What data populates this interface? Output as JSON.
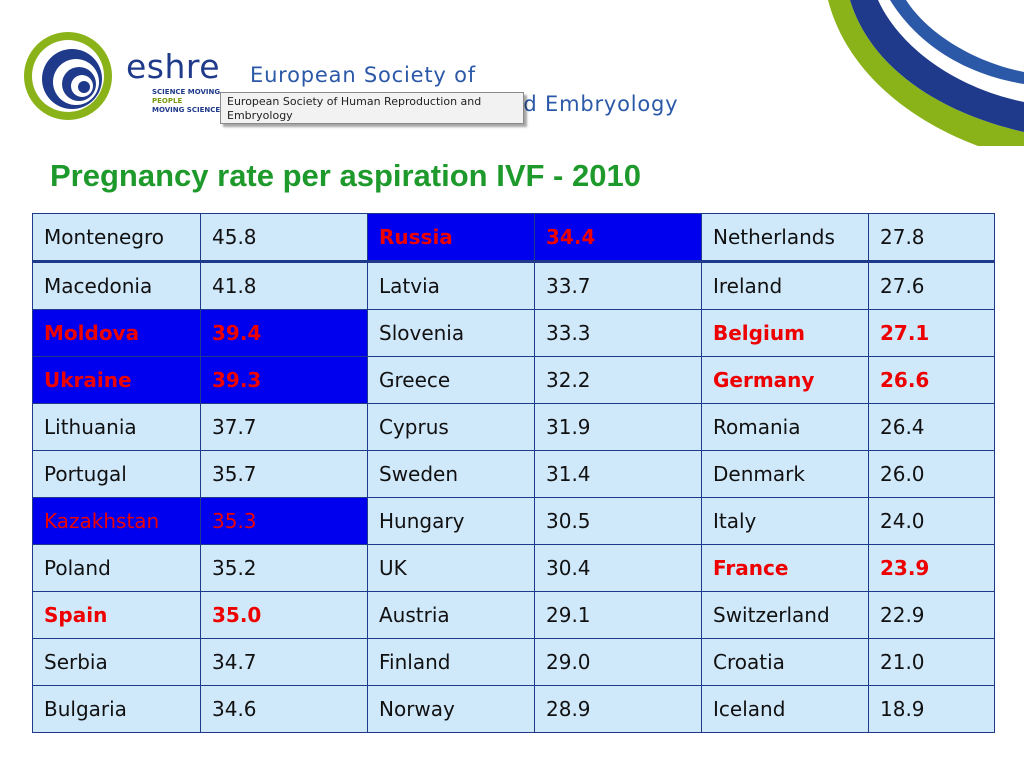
{
  "header": {
    "brand_name": "eshre",
    "tagline": [
      "SCIENCE MOVING",
      "PEOPLE",
      "MOVING SCIENCE"
    ],
    "society_line1": "European Society of",
    "society_line2": "Human Reproduction and Embryology",
    "tooltip_text": "European Society of Human Reproduction and Embryology"
  },
  "title": "Pregnancy rate per aspiration IVF - 2010",
  "colors": {
    "title": "#1e9a2c",
    "cell_background": "#cfe8fa",
    "highlight_cell": "#0000ee",
    "highlight_text": "#ee0000",
    "border": "#1f3a8a"
  },
  "table": {
    "rows": [
      [
        {
          "country": "Montenegro",
          "rate": "45.8",
          "highlight": false
        },
        {
          "country": "Russia",
          "rate": "34.4",
          "highlight": true,
          "red": true,
          "bold": true
        },
        {
          "country": "Netherlands",
          "rate": "27.8",
          "highlight": false
        }
      ],
      [
        {
          "country": "Macedonia",
          "rate": "41.8",
          "highlight": false
        },
        {
          "country": "Latvia",
          "rate": "33.7",
          "highlight": false
        },
        {
          "country": "Ireland",
          "rate": "27.6",
          "highlight": false
        }
      ],
      [
        {
          "country": "Moldova",
          "rate": "39.4",
          "highlight": true,
          "red": true,
          "bold": true
        },
        {
          "country": "Slovenia",
          "rate": "33.3",
          "highlight": false
        },
        {
          "country": "Belgium",
          "rate": "27.1",
          "highlight": false,
          "red": true,
          "bold": true
        }
      ],
      [
        {
          "country": "Ukraine",
          "rate": "39.3",
          "highlight": true,
          "red": true,
          "bold": true
        },
        {
          "country": "Greece",
          "rate": "32.2",
          "highlight": false
        },
        {
          "country": "Germany",
          "rate": "26.6",
          "highlight": false,
          "red": true,
          "bold": true
        }
      ],
      [
        {
          "country": "Lithuania",
          "rate": "37.7",
          "highlight": false
        },
        {
          "country": "Cyprus",
          "rate": "31.9",
          "highlight": false
        },
        {
          "country": "Romania",
          "rate": "26.4",
          "highlight": false
        }
      ],
      [
        {
          "country": "Portugal",
          "rate": "35.7",
          "highlight": false
        },
        {
          "country": "Sweden",
          "rate": "31.4",
          "highlight": false
        },
        {
          "country": "Denmark",
          "rate": "26.0",
          "highlight": false
        }
      ],
      [
        {
          "country": "Kazakhstan",
          "rate": "35.3",
          "highlight": true,
          "red": true,
          "bold": false
        },
        {
          "country": "Hungary",
          "rate": "30.5",
          "highlight": false
        },
        {
          "country": "Italy",
          "rate": "24.0",
          "highlight": false
        }
      ],
      [
        {
          "country": "Poland",
          "rate": "35.2",
          "highlight": false
        },
        {
          "country": "UK",
          "rate": "30.4",
          "highlight": false
        },
        {
          "country": "France",
          "rate": "23.9",
          "highlight": false,
          "red": true,
          "bold": true
        }
      ],
      [
        {
          "country": "Spain",
          "rate": "35.0",
          "highlight": false,
          "red": true,
          "bold": true
        },
        {
          "country": "Austria",
          "rate": "29.1",
          "highlight": false
        },
        {
          "country": "Switzerland",
          "rate": "22.9",
          "highlight": false
        }
      ],
      [
        {
          "country": "Serbia",
          "rate": "34.7",
          "highlight": false
        },
        {
          "country": "Finland",
          "rate": "29.0",
          "highlight": false
        },
        {
          "country": "Croatia",
          "rate": "21.0",
          "highlight": false
        }
      ],
      [
        {
          "country": "Bulgaria",
          "rate": "34.6",
          "highlight": false
        },
        {
          "country": "Norway",
          "rate": "28.9",
          "highlight": false
        },
        {
          "country": "Iceland",
          "rate": "18.9",
          "highlight": false
        }
      ]
    ]
  }
}
